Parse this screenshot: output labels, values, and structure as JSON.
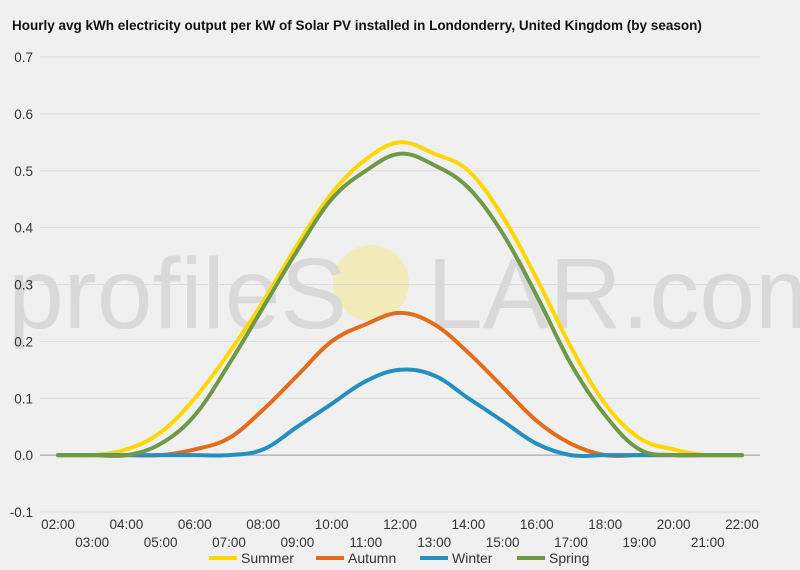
{
  "watermark": {
    "prefix": "profileS",
    "suffix": "LAR.com"
  },
  "chart_data": {
    "type": "line",
    "title": "Hourly avg kWh electricity output per kW of Solar PV installed in Londonderry, United Kingdom (by season)",
    "xlabel": "",
    "ylabel": "",
    "ylim": [
      -0.1,
      0.7
    ],
    "yticks": [
      "-0.1",
      "0.0",
      "0.1",
      "0.2",
      "0.3",
      "0.4",
      "0.5",
      "0.6",
      "0.7"
    ],
    "grid": true,
    "legend": "bottom",
    "x": [
      "02:00",
      "03:00",
      "04:00",
      "05:00",
      "06:00",
      "07:00",
      "08:00",
      "09:00",
      "10:00",
      "11:00",
      "12:00",
      "13:00",
      "14:00",
      "15:00",
      "16:00",
      "17:00",
      "18:00",
      "19:00",
      "20:00",
      "21:00",
      "22:00"
    ],
    "series": [
      {
        "name": "Summer",
        "color": "#ffd700",
        "values": [
          0,
          0,
          0.01,
          0.04,
          0.1,
          0.18,
          0.27,
          0.37,
          0.46,
          0.52,
          0.55,
          0.53,
          0.5,
          0.42,
          0.31,
          0.19,
          0.09,
          0.03,
          0.01,
          0,
          0
        ]
      },
      {
        "name": "Autumn",
        "color": "#e36c1c",
        "values": [
          0,
          0,
          0,
          0,
          0.01,
          0.03,
          0.08,
          0.14,
          0.2,
          0.23,
          0.25,
          0.23,
          0.18,
          0.12,
          0.06,
          0.02,
          0,
          0,
          0,
          0,
          0
        ]
      },
      {
        "name": "Winter",
        "color": "#2590c0",
        "values": [
          0,
          0,
          0,
          0,
          0,
          0,
          0.01,
          0.05,
          0.09,
          0.13,
          0.15,
          0.14,
          0.1,
          0.06,
          0.02,
          0,
          0,
          0,
          0,
          0,
          0
        ]
      },
      {
        "name": "Spring",
        "color": "#6e9a48",
        "values": [
          0,
          0,
          0,
          0.02,
          0.07,
          0.16,
          0.26,
          0.36,
          0.45,
          0.5,
          0.53,
          0.51,
          0.47,
          0.39,
          0.28,
          0.16,
          0.07,
          0.01,
          0,
          0,
          0
        ]
      }
    ]
  }
}
